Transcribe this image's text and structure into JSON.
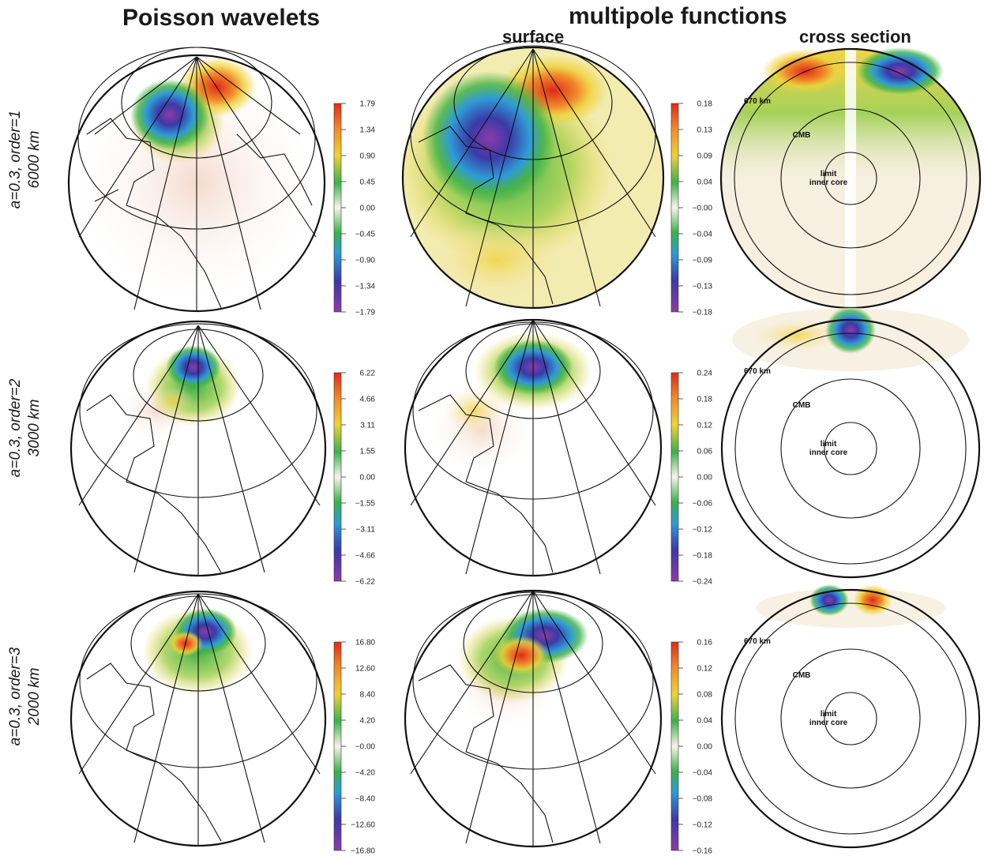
{
  "headers": {
    "left": "Poisson wavelets",
    "center": "multipole functions",
    "surface": "surface",
    "cross": "cross section"
  },
  "rows": [
    {
      "label_line1": "a=0.3, order=1",
      "label_line2": "6000 km",
      "wavelet_ticks": [
        "1.79",
        "1.34",
        "0.90",
        "0.45",
        "0.00",
        "−0.45",
        "−0.90",
        "−1.34",
        "−1.79"
      ],
      "multipole_ticks": [
        "0.18",
        "0.13",
        "0.09",
        "0.04",
        "−0.00",
        "−0.04",
        "−0.09",
        "−0.13",
        "−0.18"
      ],
      "cross_labels": {
        "km670": "670 km",
        "cmb": "CMB",
        "limit": "limit",
        "inner": "inner core"
      }
    },
    {
      "label_line1": "a=0.3, order=2",
      "label_line2": "3000 km",
      "wavelet_ticks": [
        "6.22",
        "4.66",
        "3.11",
        "1.55",
        "0.00",
        "−1.55",
        "−3.11",
        "−4.66",
        "−6.22"
      ],
      "multipole_ticks": [
        "0.24",
        "0.18",
        "0.12",
        "0.06",
        "0.00",
        "−0.06",
        "−0.12",
        "−0.18",
        "−0.24"
      ],
      "cross_labels": {
        "km670": "670 km",
        "cmb": "CMB",
        "limit": "limit",
        "inner": "inner core"
      }
    },
    {
      "label_line1": "a=0.3, order=3",
      "label_line2": "2000 km",
      "wavelet_ticks": [
        "16.80",
        "12.60",
        "8.40",
        "4.20",
        "−0.00",
        "−4.20",
        "−8.40",
        "−12.60",
        "−16.80"
      ],
      "multipole_ticks": [
        "0.16",
        "0.12",
        "0.08",
        "0.04",
        "0.00",
        "−0.04",
        "−0.08",
        "−0.12",
        "−0.16"
      ],
      "cross_labels": {
        "km670": "670 km",
        "cmb": "CMB",
        "limit": "limit",
        "inner": "inner core"
      }
    }
  ],
  "colors": {
    "scale": [
      "#8e3aa8",
      "#3a3aa8",
      "#2f9bd6",
      "#3db04a",
      "#f7f5e8",
      "#f0d23a",
      "#f08a2a",
      "#e02a1a"
    ]
  }
}
